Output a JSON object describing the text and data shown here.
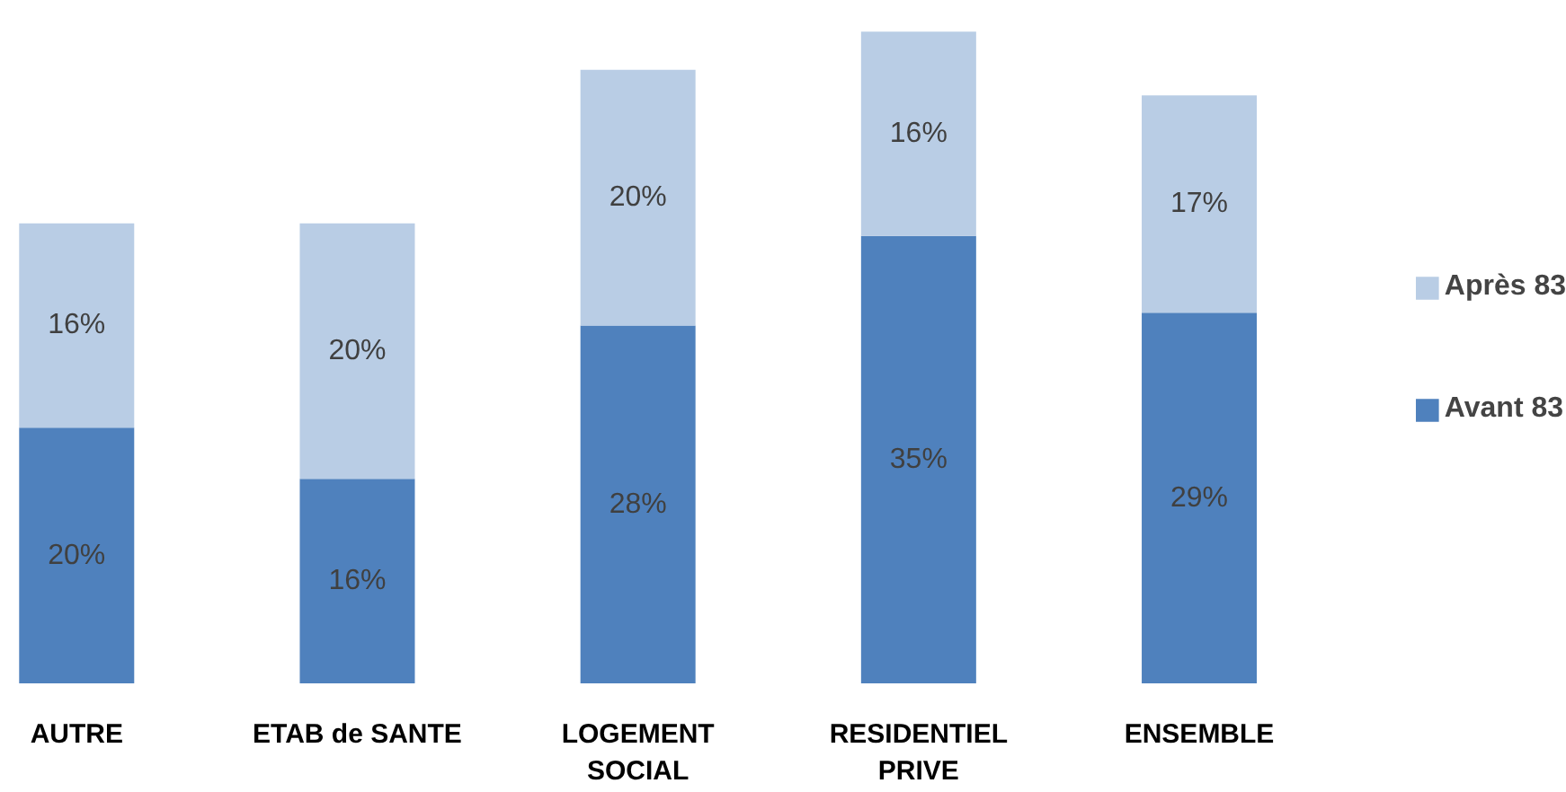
{
  "chart_data": {
    "type": "bar",
    "stacked": true,
    "legend": "right",
    "grid": false,
    "categories": [
      "AUTRE",
      "ETAB de SANTE",
      "LOGEMENT SOCIAL",
      "RESIDENTIEL PRIVE",
      "ENSEMBLE"
    ],
    "series": [
      {
        "name": "Avant 83",
        "color": "#4f81bd",
        "values": [
          20,
          16,
          28,
          35,
          29
        ],
        "value_labels": [
          "20%",
          "16%",
          "28%",
          "35%",
          "29%"
        ]
      },
      {
        "name": "Après 83",
        "color": "#b9cde5",
        "values": [
          16,
          20,
          20,
          16,
          17
        ],
        "value_labels": [
          "16%",
          "20%",
          "20%",
          "16%",
          "17%"
        ]
      }
    ]
  }
}
